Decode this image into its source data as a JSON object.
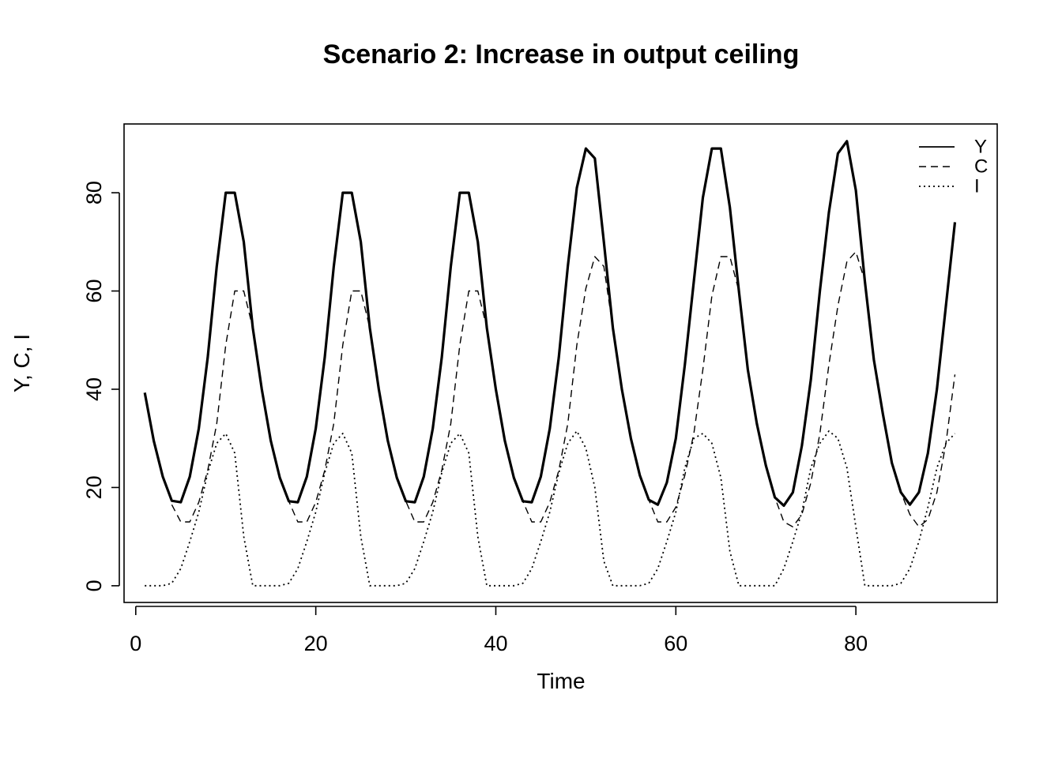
{
  "chart_data": {
    "type": "line",
    "title": "Scenario 2: Increase in output ceiling",
    "xlabel": "Time",
    "ylabel": "Y, C, I",
    "xlim": [
      -1.3,
      95.7
    ],
    "ylim": [
      -3.4,
      94
    ],
    "xticks": [
      0,
      20,
      40,
      60,
      80
    ],
    "yticks": [
      0,
      20,
      40,
      60,
      80
    ],
    "grid": false,
    "legend_position": "top-right",
    "x": [
      1,
      2,
      3,
      4,
      5,
      6,
      7,
      8,
      9,
      10,
      11,
      12,
      13,
      14,
      15,
      16,
      17,
      18,
      19,
      20,
      21,
      22,
      23,
      24,
      25,
      26,
      27,
      28,
      29,
      30,
      31,
      32,
      33,
      34,
      35,
      36,
      37,
      38,
      39,
      40,
      41,
      42,
      43,
      44,
      45,
      46,
      47,
      48,
      49,
      50,
      51,
      52,
      53,
      54,
      55,
      56,
      57,
      58,
      59,
      60,
      61,
      62,
      63,
      64,
      65,
      66,
      67,
      68,
      69,
      70,
      71,
      72,
      73,
      74,
      75,
      76,
      77,
      78,
      79,
      80,
      81,
      82,
      83,
      84,
      85,
      86,
      87,
      88,
      89,
      90,
      91
    ],
    "series": [
      {
        "name": "Y",
        "line_style": "solid",
        "values": [
          39.3,
          29.5,
          22.2,
          17.3,
          17.0,
          22.2,
          32.0,
          46.5,
          65.0,
          80.0,
          80.0,
          70.0,
          52.5,
          40.0,
          29.5,
          22.0,
          17.2,
          17.0,
          22.2,
          32.0,
          46.5,
          65.0,
          80.0,
          80.0,
          70.0,
          52.5,
          40.0,
          29.5,
          22.0,
          17.2,
          17.0,
          22.2,
          32.0,
          46.5,
          65.0,
          80.0,
          80.0,
          70.0,
          52.5,
          40.0,
          29.5,
          22.0,
          17.2,
          17.0,
          22.2,
          32.0,
          46.5,
          65.0,
          81.0,
          89.0,
          87.0,
          70.0,
          52.5,
          40.0,
          30.0,
          22.5,
          17.5,
          16.5,
          21.0,
          30.0,
          45.0,
          62.0,
          79.0,
          89.0,
          89.0,
          77.0,
          60.0,
          44.0,
          33.0,
          24.5,
          18.0,
          16.3,
          19.0,
          28.5,
          42.0,
          60.0,
          76.0,
          88.0,
          90.5,
          80.5,
          62.0,
          46.0,
          35.0,
          25.0,
          19.0,
          16.5,
          19.0,
          27.0,
          40.0,
          57.0,
          74.0
        ]
      },
      {
        "name": "C",
        "line_style": "dashed",
        "values": [
          null,
          null,
          null,
          16.5,
          13.0,
          13.0,
          17.0,
          23.5,
          33.0,
          49.0,
          60.0,
          60.0,
          52.5,
          40.0,
          29.5,
          22.0,
          17.2,
          13.0,
          13.0,
          17.0,
          23.5,
          33.0,
          49.0,
          60.0,
          60.0,
          52.5,
          40.0,
          29.5,
          22.0,
          17.2,
          13.0,
          13.0,
          17.0,
          23.5,
          33.0,
          49.0,
          60.0,
          60.0,
          52.5,
          40.0,
          29.5,
          22.0,
          17.2,
          13.0,
          13.0,
          17.0,
          23.5,
          33.0,
          49.0,
          60.5,
          67.0,
          65.0,
          52.5,
          40.0,
          30.0,
          22.5,
          17.5,
          13.0,
          13.0,
          16.0,
          22.5,
          31.0,
          44.0,
          59.0,
          67.0,
          67.0,
          60.0,
          44.0,
          33.0,
          24.5,
          18.0,
          13.0,
          12.0,
          14.5,
          21.0,
          31.0,
          45.0,
          57.0,
          66.0,
          68.0,
          62.0,
          46.0,
          35.0,
          25.0,
          19.0,
          14.5,
          12.0,
          13.5,
          19.0,
          29.0,
          43.0
        ]
      },
      {
        "name": "I",
        "line_style": "dotted",
        "values": [
          0,
          0,
          0,
          0.5,
          3.5,
          9.0,
          15.0,
          23.0,
          29.0,
          31.0,
          27.0,
          10.0,
          0,
          0,
          0,
          0,
          0.5,
          3.5,
          9.0,
          15.0,
          23.0,
          29.0,
          31.0,
          27.0,
          10.0,
          0,
          0,
          0,
          0,
          0.5,
          3.5,
          9.0,
          15.0,
          23.0,
          29.0,
          31.0,
          27.0,
          10.0,
          0,
          0,
          0,
          0,
          0.5,
          3.5,
          9.0,
          15.0,
          23.0,
          29.0,
          31.5,
          28.0,
          20.0,
          5.0,
          0,
          0,
          0,
          0,
          0.5,
          3.5,
          9.0,
          15.0,
          24.0,
          30.0,
          31.0,
          29.0,
          22.0,
          7.0,
          0,
          0,
          0,
          0,
          0,
          3.5,
          9.0,
          15.0,
          24.0,
          29.0,
          31.5,
          30.0,
          24.0,
          12.0,
          0,
          0,
          0,
          0,
          0.5,
          3.5,
          9.0,
          16.0,
          24.0,
          29.0,
          31.0
        ]
      }
    ]
  }
}
